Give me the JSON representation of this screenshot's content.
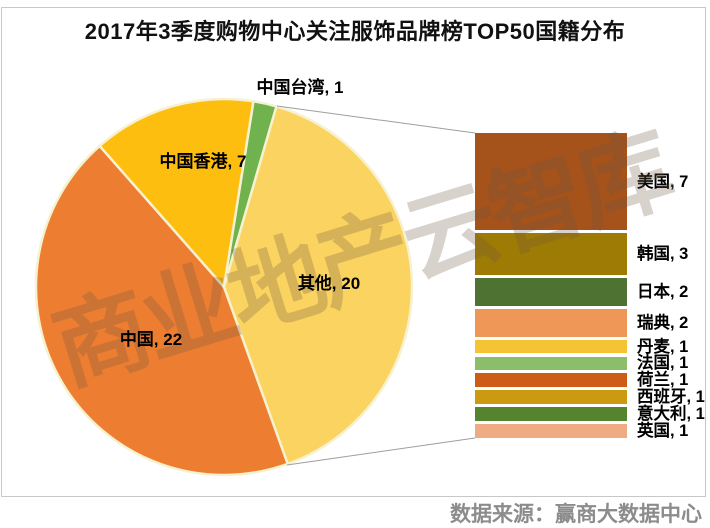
{
  "title": "2017年3季度购物中心关注服饰品牌榜TOP50国籍分布",
  "source": "数据来源：赢商大数据中心",
  "watermark": "商业地产云智库",
  "chart_data": {
    "type": "pie",
    "title": "2017年3季度购物中心关注服饰品牌榜TOP50国籍分布",
    "total": 50,
    "legend_position": "none",
    "grid": false,
    "pie": {
      "start_angle_deg": 9,
      "border_color": "#F6F1CE",
      "slices": [
        {
          "label": "中国台湾",
          "value": 1,
          "color": "#70B24D",
          "display": "中国台湾, 1"
        },
        {
          "label": "其他",
          "value": 20,
          "color": "#FBD360",
          "display": "其他, 20"
        },
        {
          "label": "中国",
          "value": 22,
          "color": "#ED7D31",
          "display": "中国, 22"
        },
        {
          "label": "中国香港",
          "value": 7,
          "color": "#FDBE0F",
          "display": "中国香港, 7"
        }
      ]
    },
    "breakout_bar": {
      "represents": "其他",
      "total": 20,
      "gap_color": "#F5F0C0",
      "segments": [
        {
          "name": "usa",
          "label": "美国",
          "value": 7,
          "color": "#A5521B",
          "display": "美国, 7"
        },
        {
          "name": "south-korea",
          "label": "韩国",
          "value": 3,
          "color": "#9E7B04",
          "display": "韩国, 3"
        },
        {
          "name": "japan",
          "label": "日本",
          "value": 2,
          "color": "#4E7231",
          "display": "日本, 2"
        },
        {
          "name": "sweden",
          "label": "瑞典",
          "value": 2,
          "color": "#EF9757",
          "display": "瑞典, 2"
        },
        {
          "name": "denmark",
          "label": "丹麦",
          "value": 1,
          "color": "#F4C435",
          "display": "丹麦, 1"
        },
        {
          "name": "france",
          "label": "法国",
          "value": 1,
          "color": "#8CBD6B",
          "display": "法国, 1"
        },
        {
          "name": "netherlands",
          "label": "荷兰",
          "value": 1,
          "color": "#CC5C17",
          "display": "荷兰, 1"
        },
        {
          "name": "spain",
          "label": "西班牙",
          "value": 1,
          "color": "#CC9A10",
          "display": "西班牙, 1"
        },
        {
          "name": "italy",
          "label": "意大利",
          "value": 1,
          "color": "#55842E",
          "display": "意大利, 1"
        },
        {
          "name": "uk",
          "label": "英国",
          "value": 1,
          "color": "#EFAC83",
          "display": "英国, 1"
        }
      ]
    },
    "connector_color": "#9E9E9E"
  }
}
